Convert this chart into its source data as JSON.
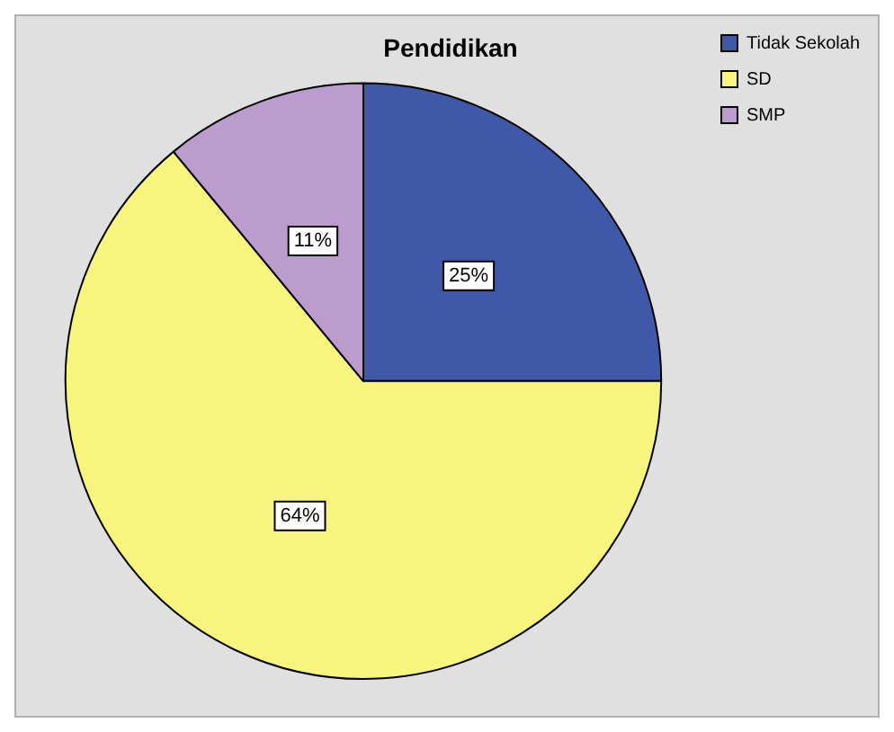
{
  "chart_data": {
    "type": "pie",
    "title": "Pendidikan",
    "categories": [
      "Tidak Sekolah",
      "SD",
      "SMP"
    ],
    "values": [
      25,
      64,
      11
    ],
    "colors": [
      "#3f58a8",
      "#f8f57f",
      "#bb9ccc"
    ],
    "value_labels": [
      "25%",
      "64%",
      "11%"
    ],
    "legend": "top right"
  }
}
